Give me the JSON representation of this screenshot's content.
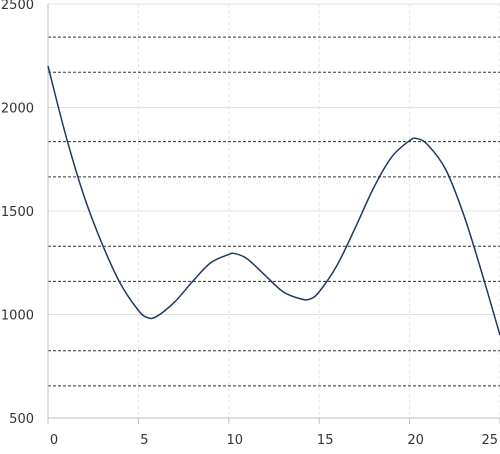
{
  "chart_data": {
    "type": "line",
    "title": "",
    "xlabel": "",
    "ylabel": "",
    "xlim": [
      0,
      25
    ],
    "ylim": [
      500,
      2500
    ],
    "x_ticks": [
      {
        "value": 0,
        "label": "0"
      },
      {
        "value": 5,
        "label": "5"
      },
      {
        "value": 10,
        "label": "10"
      },
      {
        "value": 15,
        "label": "15"
      },
      {
        "value": 20,
        "label": "20"
      },
      {
        "value": 25,
        "label": "25"
      }
    ],
    "y_ticks": [
      {
        "value": 500,
        "label": "500"
      },
      {
        "value": 1000,
        "label": "1000"
      },
      {
        "value": 1500,
        "label": "1500"
      },
      {
        "value": 2000,
        "label": "2000"
      },
      {
        "value": 2500,
        "label": "2500"
      }
    ],
    "grid": true,
    "legend": "none",
    "reference_lines": [
      2340,
      2170,
      1835,
      1665,
      1330,
      1160,
      825,
      655
    ],
    "series": [
      {
        "color": "#1f3a5f",
        "x": [
          0,
          1,
          2,
          3,
          4,
          5,
          5.5,
          6,
          7,
          8,
          9,
          10,
          10.3,
          11,
          12,
          13,
          14,
          14.5,
          15,
          16,
          17,
          18,
          19,
          20,
          20.4,
          21,
          22,
          23,
          24,
          25
        ],
        "y": [
          2200,
          1860,
          1570,
          1340,
          1150,
          1020,
          985,
          990,
          1060,
          1160,
          1250,
          1290,
          1295,
          1270,
          1190,
          1110,
          1075,
          1075,
          1110,
          1240,
          1420,
          1610,
          1760,
          1840,
          1850,
          1820,
          1700,
          1480,
          1200,
          900
        ]
      }
    ],
    "colors": {
      "line": "#1f3a5f",
      "axis": "#bdbdbd",
      "grid": "#e3e3e3",
      "reference": "#333333",
      "tick_text": "#333333"
    }
  }
}
